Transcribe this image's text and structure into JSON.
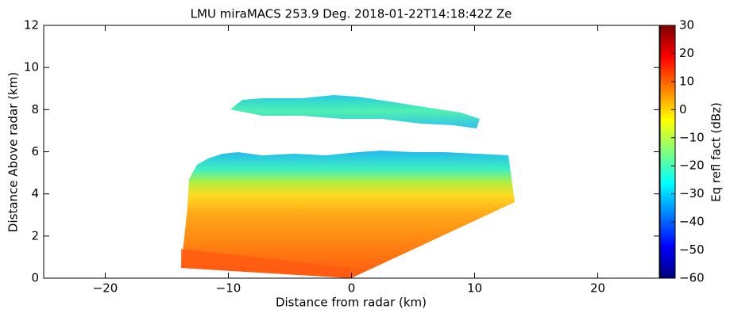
{
  "chart_data": {
    "type": "heatmap",
    "title": "LMU miraMACS 253.9 Deg. 2018-01-22T14:18:42Z  Ze",
    "xlabel": "Distance from radar (km)",
    "ylabel": "Distance Above radar  (km)",
    "xlim": [
      -25,
      25
    ],
    "xticks": [
      {
        "value": -20,
        "label": "−20"
      },
      {
        "value": -10,
        "label": "−10"
      },
      0,
      10,
      20
    ],
    "ylim": [
      0,
      12
    ],
    "yticks": [
      0,
      2,
      4,
      6,
      8,
      10,
      12
    ],
    "colorbar": {
      "label": "Eq refl fact (dBz)",
      "colormap": "jet",
      "lim": [
        -60,
        30
      ],
      "ticks": [
        {
          "value": -60,
          "label": "−60"
        },
        {
          "value": -50,
          "label": "−50"
        },
        {
          "value": -40,
          "label": "−40"
        },
        {
          "value": -30,
          "label": "−30"
        },
        {
          "value": -20,
          "label": "−20"
        },
        {
          "value": -10,
          "label": "−10"
        },
        0,
        10,
        20,
        30
      ]
    }
  }
}
